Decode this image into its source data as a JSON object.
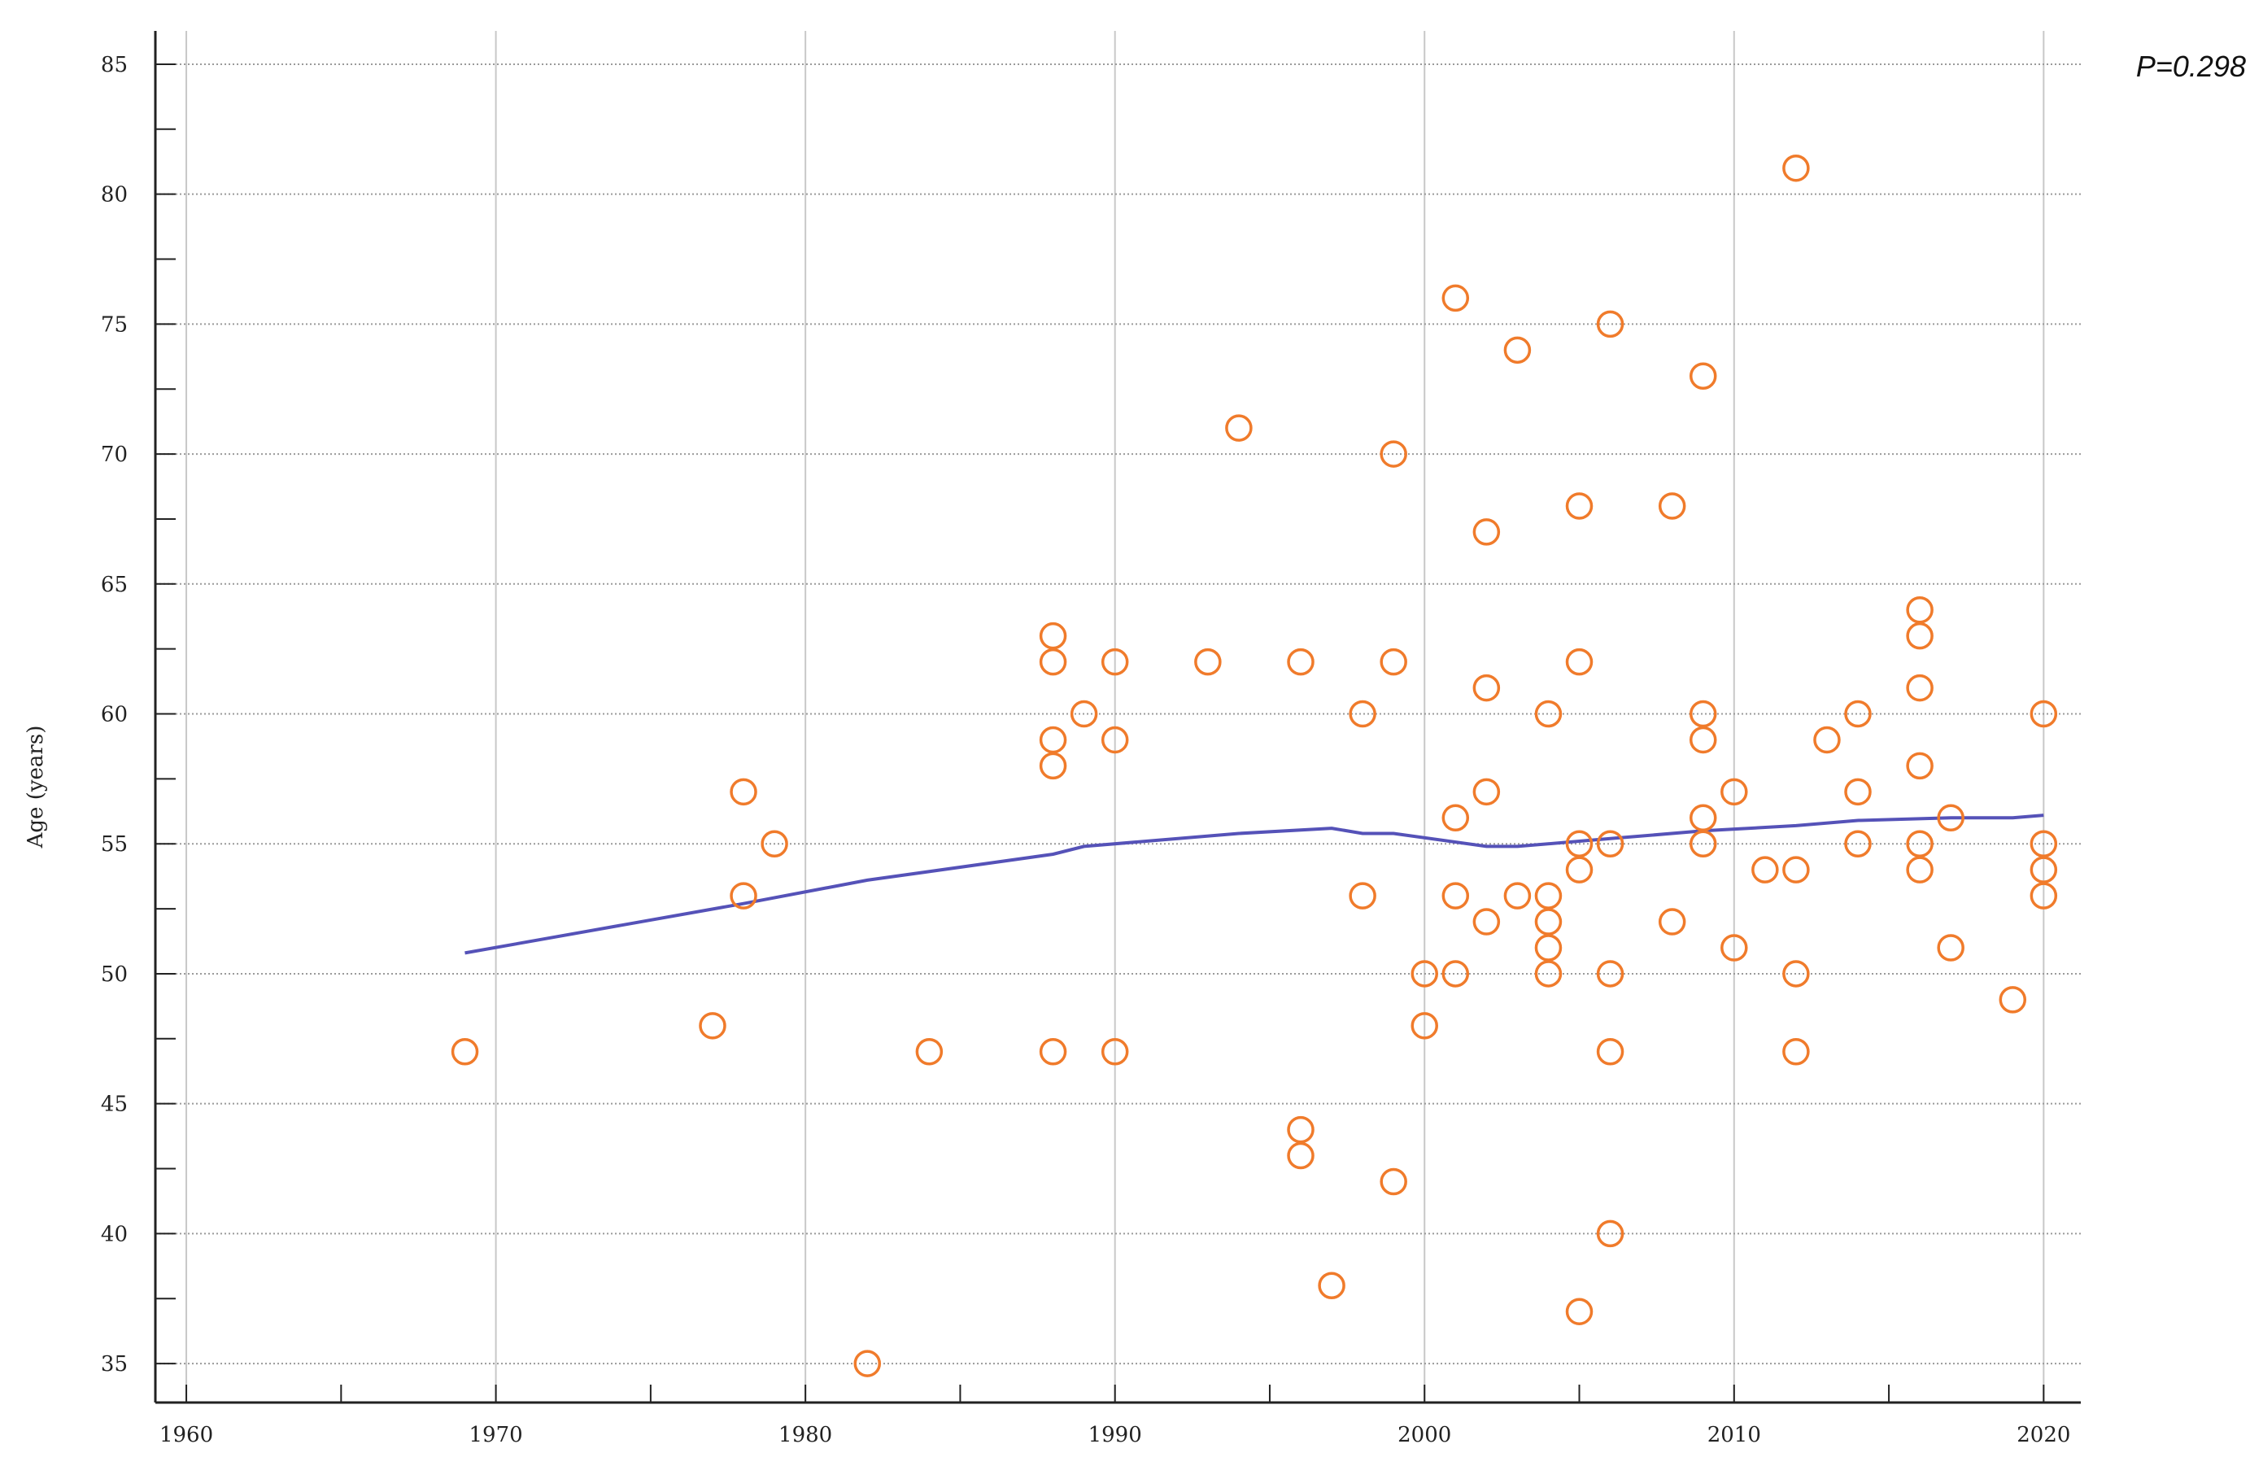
{
  "chart_data": {
    "type": "scatter",
    "title": "",
    "xlabel": "",
    "ylabel": "Age (years)",
    "annotation": "P=0.298",
    "xlim": [
      1959,
      2021.2
    ],
    "ylim": [
      33.5,
      86
    ],
    "xticks": [
      1960,
      1970,
      1980,
      1990,
      2000,
      2010,
      2020
    ],
    "xticks_minor": [
      1965,
      1975,
      1985,
      1995,
      2005,
      2015
    ],
    "yticks": [
      35,
      40,
      45,
      50,
      55,
      60,
      65,
      70,
      75,
      80,
      85
    ],
    "grid": true,
    "colors": {
      "points": "#f07b2b",
      "trend": "#5552b8",
      "grid_v": "#c8c8c8",
      "grid_h": "#9a9a9a",
      "axis": "#222222"
    },
    "points": [
      [
        1969,
        47
      ],
      [
        1977,
        48
      ],
      [
        1978,
        57
      ],
      [
        1978,
        53
      ],
      [
        1979,
        55
      ],
      [
        1982,
        35
      ],
      [
        1984,
        47
      ],
      [
        1988,
        63
      ],
      [
        1988,
        62
      ],
      [
        1988,
        59
      ],
      [
        1988,
        58
      ],
      [
        1988,
        47
      ],
      [
        1989,
        60
      ],
      [
        1990,
        62
      ],
      [
        1990,
        59
      ],
      [
        1990,
        47
      ],
      [
        1993,
        62
      ],
      [
        1994,
        71
      ],
      [
        1996,
        62
      ],
      [
        1996,
        44
      ],
      [
        1996,
        43
      ],
      [
        1997,
        38
      ],
      [
        1998,
        60
      ],
      [
        1998,
        53
      ],
      [
        1999,
        70
      ],
      [
        1999,
        62
      ],
      [
        1999,
        42
      ],
      [
        2000,
        50
      ],
      [
        2000,
        48
      ],
      [
        2001,
        76
      ],
      [
        2001,
        56
      ],
      [
        2001,
        53
      ],
      [
        2001,
        50
      ],
      [
        2002,
        67
      ],
      [
        2002,
        61
      ],
      [
        2002,
        57
      ],
      [
        2002,
        52
      ],
      [
        2003,
        74
      ],
      [
        2003,
        53
      ],
      [
        2004,
        60
      ],
      [
        2004,
        53
      ],
      [
        2004,
        52
      ],
      [
        2004,
        51
      ],
      [
        2004,
        50
      ],
      [
        2005,
        68
      ],
      [
        2005,
        62
      ],
      [
        2005,
        55
      ],
      [
        2005,
        54
      ],
      [
        2005,
        37
      ],
      [
        2006,
        75
      ],
      [
        2006,
        55
      ],
      [
        2006,
        50
      ],
      [
        2006,
        47
      ],
      [
        2006,
        40
      ],
      [
        2008,
        68
      ],
      [
        2008,
        52
      ],
      [
        2009,
        73
      ],
      [
        2009,
        60
      ],
      [
        2009,
        59
      ],
      [
        2009,
        56
      ],
      [
        2009,
        55
      ],
      [
        2010,
        57
      ],
      [
        2010,
        51
      ],
      [
        2011,
        54
      ],
      [
        2012,
        81
      ],
      [
        2012,
        54
      ],
      [
        2012,
        50
      ],
      [
        2012,
        47
      ],
      [
        2013,
        59
      ],
      [
        2014,
        60
      ],
      [
        2014,
        57
      ],
      [
        2014,
        55
      ],
      [
        2016,
        64
      ],
      [
        2016,
        63
      ],
      [
        2016,
        61
      ],
      [
        2016,
        58
      ],
      [
        2016,
        55
      ],
      [
        2016,
        54
      ],
      [
        2017,
        56
      ],
      [
        2017,
        51
      ],
      [
        2019,
        49
      ],
      [
        2020,
        60
      ],
      [
        2020,
        55
      ],
      [
        2020,
        54
      ],
      [
        2020,
        53
      ]
    ],
    "trend": [
      [
        1969,
        50.8
      ],
      [
        1978,
        52.7
      ],
      [
        1982,
        53.6
      ],
      [
        1988,
        54.6
      ],
      [
        1989,
        54.9
      ],
      [
        1994,
        55.4
      ],
      [
        1997,
        55.6
      ],
      [
        1998,
        55.4
      ],
      [
        1999,
        55.4
      ],
      [
        2002,
        54.9
      ],
      [
        2003,
        54.9
      ],
      [
        2006,
        55.2
      ],
      [
        2009,
        55.5
      ],
      [
        2012,
        55.7
      ],
      [
        2014,
        55.9
      ],
      [
        2017,
        56.0
      ],
      [
        2019,
        56.0
      ],
      [
        2020,
        56.1
      ]
    ]
  }
}
